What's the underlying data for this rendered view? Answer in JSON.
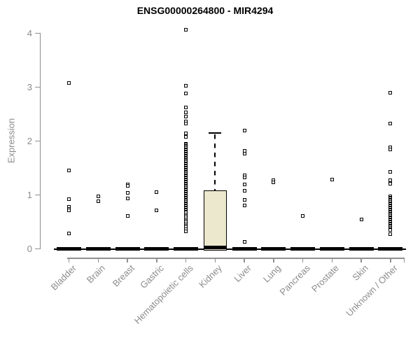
{
  "title": "ENSG00000264800 - MIR4294",
  "colors": {
    "box_fill": "#ece8cd",
    "box_border": "#000000",
    "axis": "#909090",
    "axis_text": "#8c8c8c",
    "title_text": "#000000",
    "point": "#000000"
  },
  "chart_data": {
    "type": "boxplot",
    "title": "ENSG00000264800 - MIR4294",
    "xlabel": "",
    "ylabel": "Expression",
    "ylim": [
      0,
      4
    ],
    "y_ticks": [
      0,
      1,
      2,
      3,
      4
    ],
    "grid": false,
    "legend": false,
    "categories": [
      "Bladder",
      "Brain",
      "Breast",
      "Gastric",
      "Hematopoietic cells",
      "Kidney",
      "Liver",
      "Lung",
      "Pancreas",
      "Prostate",
      "Skin",
      "Unknown / Other"
    ],
    "series": [
      {
        "category": "Bladder",
        "box": {
          "whisker_low": 0,
          "q1": 0,
          "median": 0,
          "q3": 0,
          "whisker_high": 0
        },
        "points": [
          3.08,
          1.45,
          0.92,
          0.78,
          0.74,
          0.71,
          0.29
        ]
      },
      {
        "category": "Brain",
        "box": {
          "whisker_low": 0,
          "q1": 0,
          "median": 0,
          "q3": 0,
          "whisker_high": 0
        },
        "points": [
          0.97,
          0.88
        ]
      },
      {
        "category": "Breast",
        "box": {
          "whisker_low": 0,
          "q1": 0,
          "median": 0,
          "q3": 0,
          "whisker_high": 0
        },
        "points": [
          1.2,
          1.17,
          1.04,
          0.94,
          0.61
        ]
      },
      {
        "category": "Gastric",
        "box": {
          "whisker_low": 0,
          "q1": 0,
          "median": 0,
          "q3": 0,
          "whisker_high": 0
        },
        "points": [
          1.05,
          0.71
        ]
      },
      {
        "category": "Hematopoietic cells",
        "box": {
          "whisker_low": 0,
          "q1": 0,
          "median": 0,
          "q3": 0,
          "whisker_high": 0
        },
        "points": [
          4.07,
          3.02,
          2.88,
          2.62,
          2.53,
          2.45,
          2.36,
          2.33,
          2.14,
          2.08,
          1.95,
          1.93,
          1.91,
          1.89,
          1.87,
          1.85,
          1.83,
          1.81,
          1.79,
          1.77,
          1.75,
          1.73,
          1.71,
          1.69,
          1.67,
          1.65,
          1.63,
          1.61,
          1.59,
          1.57,
          1.55,
          1.53,
          1.51,
          1.49,
          1.47,
          1.45,
          1.43,
          1.41,
          1.39,
          1.37,
          1.35,
          1.33,
          1.31,
          1.29,
          1.27,
          1.25,
          1.23,
          1.21,
          1.19,
          1.17,
          1.15,
          1.13,
          1.11,
          1.09,
          1.07,
          1.05,
          1.03,
          1.01,
          0.99,
          0.97,
          0.95,
          0.93,
          0.91,
          0.89,
          0.87,
          0.85,
          0.83,
          0.81,
          0.79,
          0.77,
          0.75,
          0.73,
          0.71,
          0.69,
          0.67,
          0.64,
          0.61,
          0.58,
          0.55,
          0.52,
          0.49,
          0.46,
          0.43,
          0.4,
          0.37,
          0.33
        ]
      },
      {
        "category": "Kidney",
        "box": {
          "whisker_low": 0,
          "q1": 0,
          "median": 0.02,
          "q3": 1.09,
          "whisker_high": 2.15,
          "whisker_style": "dashed"
        },
        "points": []
      },
      {
        "category": "Liver",
        "box": {
          "whisker_low": 0,
          "q1": 0,
          "median": 0,
          "q3": 0,
          "whisker_high": 0
        },
        "points": [
          2.19,
          1.82,
          1.77,
          1.36,
          1.33,
          1.19,
          1.08,
          0.91,
          0.8,
          0.13
        ]
      },
      {
        "category": "Lung",
        "box": {
          "whisker_low": 0,
          "q1": 0,
          "median": 0,
          "q3": 0,
          "whisker_high": 0
        },
        "points": [
          1.27,
          1.23
        ]
      },
      {
        "category": "Pancreas",
        "box": {
          "whisker_low": 0,
          "q1": 0,
          "median": 0,
          "q3": 0,
          "whisker_high": 0
        },
        "points": [
          0.61
        ]
      },
      {
        "category": "Prostate",
        "box": {
          "whisker_low": 0,
          "q1": 0,
          "median": 0,
          "q3": 0,
          "whisker_high": 0
        },
        "points": [
          1.28
        ]
      },
      {
        "category": "Skin",
        "box": {
          "whisker_low": 0,
          "q1": 0,
          "median": 0,
          "q3": 0,
          "whisker_high": 0
        },
        "points": [
          0.55
        ]
      },
      {
        "category": "Unknown / Other",
        "box": {
          "whisker_low": 0,
          "q1": 0,
          "median": 0,
          "q3": 0,
          "whisker_high": 0
        },
        "points": [
          2.9,
          2.32,
          1.88,
          1.84,
          1.43,
          1.27,
          1.21,
          0.97,
          0.95,
          0.93,
          0.91,
          0.89,
          0.87,
          0.85,
          0.83,
          0.81,
          0.79,
          0.77,
          0.75,
          0.73,
          0.71,
          0.69,
          0.67,
          0.65,
          0.63,
          0.61,
          0.59,
          0.57,
          0.55,
          0.53,
          0.51,
          0.49,
          0.47,
          0.45,
          0.43,
          0.41,
          0.39,
          0.37,
          0.35,
          0.27
        ]
      }
    ]
  }
}
